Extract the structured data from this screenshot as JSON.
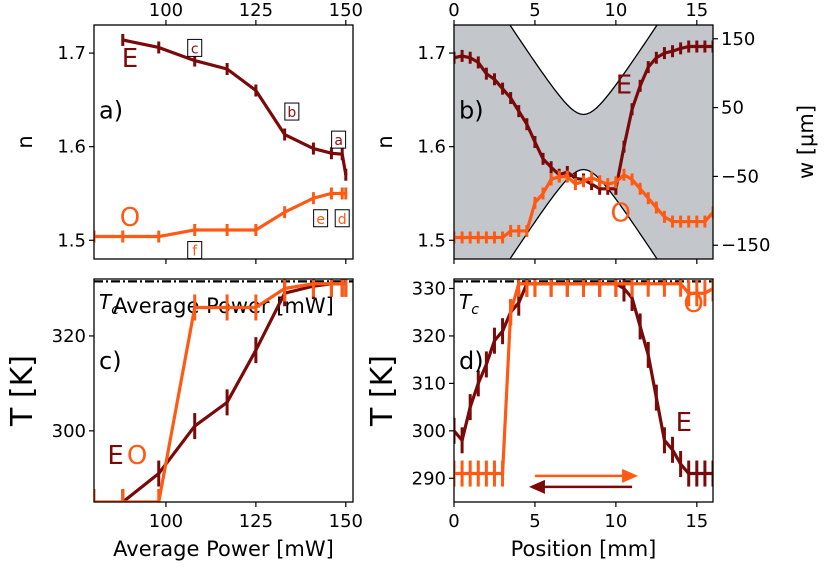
{
  "colors": {
    "E": "#7a0a0a",
    "O": "#ff5a14",
    "band": "#c3c7cc",
    "dark_red": "#8c1010"
  },
  "chart_data": [
    {
      "panel": "a)",
      "type": "line",
      "xlabel": "Average Power [mW]",
      "ylabel": "n",
      "xlim": [
        80,
        152
      ],
      "ylim": [
        1.48,
        1.73
      ],
      "xticks": [
        100,
        125,
        150
      ],
      "yticks": [
        1.5,
        1.6,
        1.7
      ],
      "series": [
        {
          "name": "E",
          "x": [
            88,
            98,
            108,
            117,
            125,
            133,
            141,
            146,
            149,
            150
          ],
          "y": [
            1.714,
            1.706,
            1.692,
            1.683,
            1.66,
            1.613,
            1.598,
            1.593,
            1.592,
            1.57
          ]
        },
        {
          "name": "O",
          "x": [
            80,
            88,
            98,
            108,
            117,
            125,
            133,
            141,
            146,
            149,
            150
          ],
          "y": [
            1.504,
            1.504,
            1.504,
            1.511,
            1.511,
            1.511,
            1.53,
            1.545,
            1.55,
            1.55,
            1.55
          ]
        }
      ],
      "annotations": [
        {
          "text": "c",
          "x": 108,
          "y": 1.705
        },
        {
          "text": "b",
          "x": 135,
          "y": 1.637
        },
        {
          "text": "a",
          "x": 148,
          "y": 1.607
        },
        {
          "text": "e",
          "x": 143,
          "y": 1.523
        },
        {
          "text": "d",
          "x": 149,
          "y": 1.523
        },
        {
          "text": "f",
          "x": 108,
          "y": 1.489
        }
      ],
      "series_labels": [
        {
          "text": "E",
          "series": "E",
          "x": 90,
          "y": 1.685
        },
        {
          "text": "O",
          "series": "O",
          "x": 90,
          "y": 1.515
        }
      ]
    },
    {
      "panel": "b)",
      "type": "line",
      "xlabel": "",
      "ylabel": "n",
      "ylabel_right": "w [μm]",
      "xlim": [
        0,
        16
      ],
      "ylim": [
        1.48,
        1.73
      ],
      "ylim_right": [
        -170,
        170
      ],
      "xticks": [
        0,
        5,
        10,
        15
      ],
      "yticks": [
        1.5,
        1.6,
        1.7
      ],
      "yticks_right": [
        150,
        50,
        -50,
        -150
      ],
      "beam_waist_um": 40,
      "beam_center_mm": 8,
      "beam_zR_mm": 1.1,
      "series": [
        {
          "name": "E",
          "x": [
            0,
            0.5,
            1,
            1.5,
            2,
            2.5,
            3,
            3.5,
            4,
            4.5,
            5,
            5.5,
            6,
            6.5,
            7,
            7.5,
            8,
            8.5,
            9,
            9.5,
            10,
            10.5,
            11,
            11.5,
            12,
            12.5,
            13,
            13.5,
            14,
            14.5,
            15,
            15.5,
            16
          ],
          "y": [
            1.695,
            1.697,
            1.695,
            1.69,
            1.678,
            1.672,
            1.662,
            1.652,
            1.638,
            1.624,
            1.605,
            1.587,
            1.578,
            1.57,
            1.573,
            1.566,
            1.565,
            1.56,
            1.555,
            1.555,
            1.555,
            1.6,
            1.64,
            1.665,
            1.685,
            1.695,
            1.7,
            1.702,
            1.705,
            1.707,
            1.707,
            1.707,
            1.707
          ]
        },
        {
          "name": "O",
          "x": [
            0,
            0.5,
            1,
            1.5,
            2,
            2.5,
            3,
            3.5,
            4,
            4.5,
            5,
            5.5,
            6,
            6.5,
            7,
            7.5,
            8,
            8.5,
            9,
            9.5,
            10,
            10.5,
            11,
            11.5,
            12,
            12.5,
            13,
            13.5,
            14,
            14.5,
            15,
            15.5,
            16
          ],
          "y": [
            1.503,
            1.503,
            1.503,
            1.503,
            1.503,
            1.503,
            1.503,
            1.51,
            1.51,
            1.51,
            1.54,
            1.55,
            1.565,
            1.568,
            1.568,
            1.56,
            1.563,
            1.567,
            1.563,
            1.56,
            1.562,
            1.57,
            1.565,
            1.555,
            1.545,
            1.535,
            1.525,
            1.52,
            1.52,
            1.52,
            1.52,
            1.52,
            1.53
          ]
        }
      ],
      "series_labels": [
        {
          "text": "E",
          "series": "E",
          "x": 10.5,
          "y": 1.657
        },
        {
          "text": "O",
          "series": "O",
          "x": 10.3,
          "y": 1.52
        }
      ]
    },
    {
      "panel": "c)",
      "type": "line",
      "xlabel": "Average Power [mW]",
      "ylabel": "T [K]",
      "xlim": [
        80,
        152
      ],
      "ylim": [
        285,
        332
      ],
      "xticks": [
        100,
        125,
        150
      ],
      "yticks": [
        300,
        320
      ],
      "tc_label": "T",
      "tc_subscript": "c",
      "tc_value": 331.5,
      "series": [
        {
          "name": "E",
          "x": [
            88,
            98,
            108,
            117,
            125,
            133,
            141,
            146,
            149,
            150
          ],
          "y": [
            285,
            291,
            301,
            306,
            317,
            329,
            330.5,
            331,
            331,
            331
          ]
        },
        {
          "name": "O",
          "x": [
            80,
            88,
            98,
            108,
            117,
            125,
            133,
            141,
            146,
            149,
            150
          ],
          "y": [
            285,
            285,
            285,
            326,
            326,
            326,
            330,
            331,
            331,
            331,
            331
          ]
        }
      ],
      "series_labels": [
        {
          "text": "E",
          "series": "E",
          "x": 86,
          "y": 293
        },
        {
          "text": "O",
          "series": "O",
          "x": 92,
          "y": 293
        }
      ]
    },
    {
      "panel": "d)",
      "type": "line",
      "xlabel": "Position [mm]",
      "ylabel": "T [K]",
      "xlim": [
        0,
        16
      ],
      "ylim": [
        285,
        332
      ],
      "xticks": [
        0,
        5,
        10,
        15
      ],
      "yticks": [
        290,
        300,
        310,
        320,
        330
      ],
      "tc_label": "T",
      "tc_subscript": "c",
      "tc_value": 331.5,
      "series": [
        {
          "name": "E",
          "x": [
            0,
            0.5,
            1,
            1.5,
            2,
            2.5,
            3,
            3.5,
            4,
            4.5,
            5,
            6,
            7,
            8,
            9,
            10,
            10.5,
            11,
            11.5,
            12,
            12.5,
            13,
            13.5,
            14,
            14.5,
            15,
            15.5,
            16
          ],
          "y": [
            300,
            298,
            305,
            310,
            314,
            319,
            321,
            325,
            327,
            331,
            331,
            331,
            331,
            331,
            331,
            331,
            330,
            328,
            322,
            316,
            307,
            298,
            296,
            293,
            291,
            291,
            291,
            291
          ]
        },
        {
          "name": "O",
          "x": [
            0,
            0.5,
            1,
            1.5,
            2,
            2.5,
            3,
            3.5,
            4,
            4.5,
            5,
            6,
            7,
            8,
            9,
            10,
            11,
            12,
            13,
            14,
            14.5,
            15,
            15.5,
            16
          ],
          "y": [
            291,
            291,
            291,
            291,
            291,
            291,
            291,
            325,
            331,
            331,
            331,
            331,
            331,
            331,
            331,
            331,
            331,
            331,
            331,
            331,
            329,
            329,
            329,
            330
          ]
        }
      ],
      "series_labels": [
        {
          "text": "O",
          "series": "O",
          "x": 14.8,
          "y": 325
        },
        {
          "text": "E",
          "series": "E",
          "x": 14.2,
          "y": 300
        }
      ],
      "arrows": [
        {
          "color": "O",
          "from": 5,
          "to": 11,
          "y": 290.5,
          "dir": "right"
        },
        {
          "color": "E",
          "from": 5,
          "to": 11,
          "y": 288.2,
          "dir": "left"
        }
      ]
    }
  ]
}
